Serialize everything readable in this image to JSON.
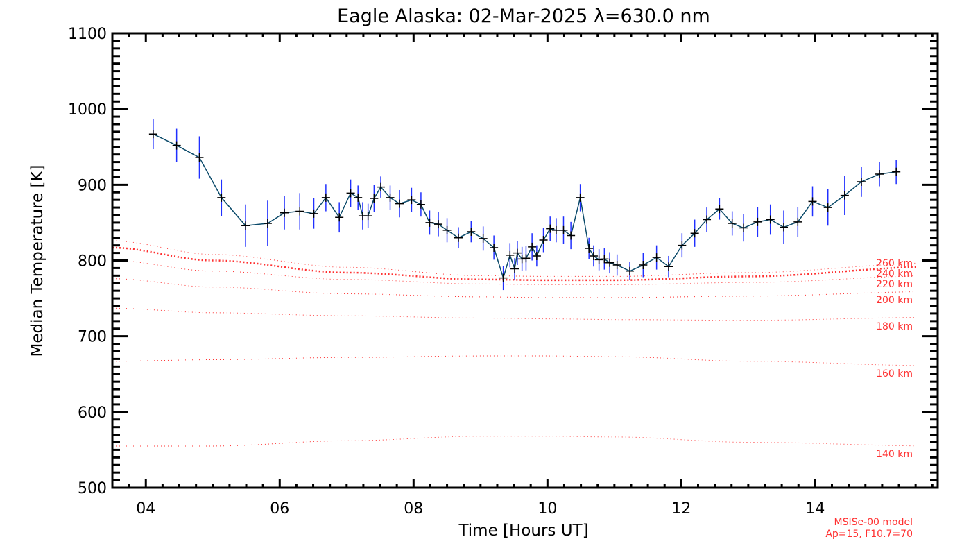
{
  "chart_data": {
    "type": "line",
    "title": "Eagle Alaska: 02-Mar-2025 λ=630.0 nm",
    "xlabel": "Time [Hours UT]",
    "ylabel": "Median Temperature [K]",
    "xlim": [
      3.5,
      15.83
    ],
    "ylim": [
      500,
      1100
    ],
    "x_ticks": [
      4,
      6,
      8,
      10,
      12,
      14
    ],
    "x_tick_labels": [
      "04",
      "06",
      "08",
      "10",
      "12",
      "14"
    ],
    "y_ticks": [
      500,
      600,
      700,
      800,
      900,
      1000,
      1100
    ],
    "y_tick_labels": [
      "500",
      "600",
      "700",
      "800",
      "900",
      "1000",
      "1100"
    ],
    "grid": false,
    "colors": {
      "line": "#0b4a6a",
      "error_bar": "#2030ff",
      "marker": "#000000",
      "model": "#ff3030"
    },
    "series": [
      {
        "name": "Median Temperature",
        "x": [
          4.11,
          4.46,
          4.8,
          5.13,
          5.49,
          5.82,
          6.07,
          6.3,
          6.51,
          6.69,
          6.89,
          7.06,
          7.17,
          7.24,
          7.32,
          7.41,
          7.51,
          7.65,
          7.79,
          7.97,
          8.11,
          8.24,
          8.37,
          8.5,
          8.67,
          8.86,
          9.04,
          9.2,
          9.34,
          9.44,
          9.51,
          9.55,
          9.62,
          9.68,
          9.77,
          9.84,
          9.94,
          10.04,
          10.13,
          10.24,
          10.35,
          10.49,
          10.62,
          10.69,
          10.77,
          10.85,
          10.93,
          11.04,
          11.23,
          11.43,
          11.63,
          11.81,
          12.01,
          12.2,
          12.38,
          12.57,
          12.76,
          12.93,
          13.14,
          13.33,
          13.53,
          13.74,
          13.96,
          14.19,
          14.44,
          14.69,
          14.96,
          15.21
        ],
        "y": [
          967,
          952,
          936,
          883,
          846,
          849,
          863,
          865,
          862,
          883,
          857,
          889,
          883,
          859,
          859,
          882,
          897,
          883,
          875,
          880,
          874,
          850,
          848,
          840,
          830,
          838,
          829,
          817,
          777,
          807,
          789,
          810,
          802,
          803,
          818,
          806,
          827,
          842,
          840,
          840,
          833,
          883,
          816,
          806,
          801,
          802,
          797,
          794,
          786,
          794,
          804,
          792,
          820,
          836,
          854,
          868,
          849,
          843,
          851,
          854,
          844,
          851,
          878,
          870,
          886,
          904,
          914,
          917
        ],
        "err": [
          20,
          22,
          28,
          24,
          28,
          30,
          22,
          24,
          20,
          18,
          20,
          18,
          16,
          18,
          16,
          18,
          14,
          16,
          18,
          16,
          16,
          16,
          16,
          16,
          14,
          14,
          16,
          16,
          16,
          16,
          14,
          16,
          16,
          16,
          18,
          14,
          16,
          16,
          16,
          18,
          18,
          18,
          14,
          14,
          14,
          14,
          14,
          14,
          12,
          16,
          16,
          14,
          16,
          18,
          16,
          14,
          16,
          18,
          20,
          20,
          22,
          20,
          20,
          24,
          26,
          20,
          16,
          16
        ]
      }
    ],
    "model_curves": [
      {
        "label": "140 km",
        "x": [
          3.5,
          5,
          7,
          9,
          10,
          11,
          13,
          15.83
        ],
        "y": [
          555,
          555,
          562,
          568,
          568,
          567,
          560,
          555
        ],
        "bold": false
      },
      {
        "label": "160 km",
        "x": [
          3.5,
          5,
          7,
          9,
          10,
          11,
          13,
          15.83
        ],
        "y": [
          667,
          669,
          672,
          674,
          674,
          673,
          667,
          661
        ],
        "bold": false
      },
      {
        "label": "180 km",
        "x": [
          3.5,
          5,
          7,
          9,
          10,
          11,
          13,
          15.83
        ],
        "y": [
          737,
          731,
          727,
          724,
          723,
          722,
          721,
          725
        ],
        "bold": false
      },
      {
        "label": "200 km",
        "x": [
          3.5,
          5,
          7,
          9,
          10,
          11,
          13,
          15.83
        ],
        "y": [
          776,
          765,
          756,
          752,
          751,
          751,
          753,
          759
        ],
        "bold": false
      },
      {
        "label": "220 km",
        "x": [
          3.5,
          5,
          7,
          9,
          10,
          11,
          13,
          15.83
        ],
        "y": [
          800,
          786,
          775,
          769,
          768,
          768,
          771,
          780
        ],
        "bold": false
      },
      {
        "label": "240 km",
        "x": [
          3.5,
          5,
          7,
          9,
          10,
          11,
          13,
          15.83
        ],
        "y": [
          817,
          800,
          784,
          775,
          774,
          774,
          779,
          792
        ],
        "bold": true
      },
      {
        "label": "260 km",
        "x": [
          3.5,
          5,
          7,
          9,
          10,
          11,
          13,
          15.83
        ],
        "y": [
          826,
          808,
          791,
          780,
          779,
          779,
          784,
          797
        ],
        "bold": false
      }
    ],
    "notes": [
      "MSISe-00 model",
      "Ap=15, F10.7=70"
    ]
  }
}
